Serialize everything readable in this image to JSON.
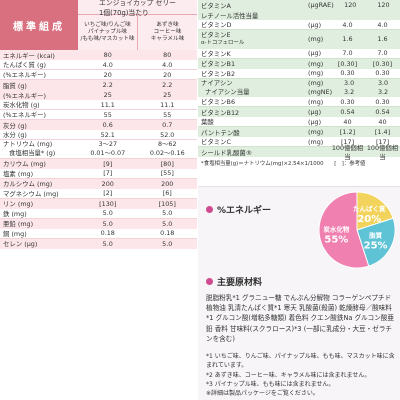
{
  "left": {
    "title": "標準組成",
    "product_header": "エンジョイカップ ゼリー\n1個(70g)当たり",
    "col1": "いちご味/りんご味\nパイナップル味\n/もも味/マスカット味",
    "col2": "あずき味\nコーヒー味\nキャラメル味",
    "rows": [
      {
        "name": "エネルギー",
        "unit": "(kcal)",
        "v1": "80",
        "v2": "80",
        "style": "pink"
      },
      {
        "name": "たんぱく質",
        "unit": "(g)",
        "v1": "4.0",
        "v2": "4.0",
        "style": "white"
      },
      {
        "name": "",
        "unit": "(%エネルギー)",
        "v1": "20",
        "v2": "20",
        "style": "white"
      },
      {
        "name": "脂質",
        "unit": "(g)",
        "v1": "2.2",
        "v2": "2.2",
        "style": "pink"
      },
      {
        "name": "",
        "unit": "(%エネルギー)",
        "v1": "25",
        "v2": "25",
        "style": "pink"
      },
      {
        "name": "炭水化物",
        "unit": "(g)",
        "v1": "11.1",
        "v2": "11.1",
        "style": "white"
      },
      {
        "name": "",
        "unit": "(%エネルギー)",
        "v1": "55",
        "v2": "55",
        "style": "white"
      },
      {
        "name": "灰分",
        "unit": "(g)",
        "v1": "0.6",
        "v2": "0.7",
        "style": "pink"
      },
      {
        "name": "水分",
        "unit": "(g)",
        "v1": "52.1",
        "v2": "52.0",
        "style": "white"
      }
    ],
    "sodium": {
      "name": "ナトリウム",
      "name2": "食塩相当量*",
      "unit": "(mg)",
      "unit2": "(g)",
      "v1": "3〜27",
      "v1b": "0.01〜0.07",
      "v2": "8〜62",
      "v2b": "0.02〜0.16"
    },
    "rows2": [
      {
        "name": "カリウム",
        "unit": "(mg)",
        "v1": "[9]",
        "v2": "[80]",
        "style": "pink"
      },
      {
        "name": "塩素",
        "unit": "(mg)",
        "v1": "[7]",
        "v2": "[55]",
        "style": "white"
      },
      {
        "name": "カルシウム",
        "unit": "(mg)",
        "v1": "200",
        "v2": "200",
        "style": "pink"
      },
      {
        "name": "マグネシウム",
        "unit": "(mg)",
        "v1": "[2]",
        "v2": "[6]",
        "style": "white"
      },
      {
        "name": "リン",
        "unit": "(mg)",
        "v1": "[130]",
        "v2": "[105]",
        "style": "pink"
      },
      {
        "name": "鉄",
        "unit": "(mg)",
        "v1": "5.0",
        "v2": "5.0",
        "style": "white"
      },
      {
        "name": "亜鉛",
        "unit": "(mg)",
        "v1": "5.0",
        "v2": "5.0",
        "style": "pink"
      },
      {
        "name": "銅",
        "unit": "(mg)",
        "v1": "0.18",
        "v2": "0.18",
        "style": "white"
      },
      {
        "name": "セレン",
        "unit": "(μg)",
        "v1": "5.0",
        "v2": "5.0",
        "style": "pink"
      }
    ]
  },
  "right": {
    "rows": [
      {
        "name": "ビタミンA",
        "unit": "(μgRAE)",
        "v1": "120",
        "v2": "120",
        "style": "green"
      },
      {
        "name": "  レチノール活性当量",
        "unit": "",
        "v1": "",
        "v2": "",
        "style": "green"
      },
      {
        "name": "ビタミンD",
        "unit": "(μg)",
        "v1": "4.0",
        "v2": "4.0",
        "style": "white"
      }
    ],
    "vitE": {
      "name": "ビタミンE",
      "name2": "α-トコフェロール",
      "unit": "(mg)",
      "v1": "1.6",
      "v2": "1.6"
    },
    "rows2": [
      {
        "name": "ビタミンK",
        "unit": "(μg)",
        "v1": "7.0",
        "v2": "7.0",
        "style": "white"
      },
      {
        "name": "ビタミンB1",
        "unit": "(mg)",
        "v1": "[0.30]",
        "v2": "[0.30]",
        "style": "green"
      },
      {
        "name": "ビタミンB2",
        "unit": "(mg)",
        "v1": "0.30",
        "v2": "0.30",
        "style": "white"
      }
    ],
    "niacin": {
      "name": "ナイアシン",
      "name2": "ナイアシン当量",
      "unit": "(mg)",
      "unit2": "(mgNE)",
      "v1": "3.0",
      "v1b": "3.2",
      "v2": "3.0",
      "v2b": "3.2"
    },
    "rows3": [
      {
        "name": "ビタミンB6",
        "unit": "(mg)",
        "v1": "0.30",
        "v2": "0.30",
        "style": "white"
      },
      {
        "name": "ビタミンB12",
        "unit": "(μg)",
        "v1": "0.54",
        "v2": "0.54",
        "style": "green"
      },
      {
        "name": "葉酸",
        "unit": "(μg)",
        "v1": "40",
        "v2": "40",
        "style": "white"
      },
      {
        "name": "パントテン酸",
        "unit": "(mg)",
        "v1": "[1.2]",
        "v2": "[1.4]",
        "style": "green"
      },
      {
        "name": "ビタミンC",
        "unit": "(mg)",
        "v1": "[17]",
        "v2": "[17]",
        "style": "white"
      },
      {
        "name": "シールド乳酸菌®",
        "unit": "",
        "v1": "100億個相当",
        "v2": "100億個相当",
        "style": "green"
      }
    ],
    "footnote": "*食塩相当量(g)＝ナトリウム(mg)×2.54×1/1000　　[　]：参考値"
  },
  "panel": {
    "energy_title": "%エネルギー",
    "pie": [
      {
        "label": "炭水化物",
        "value": 55,
        "color": "#f080b0"
      },
      {
        "label": "たんぱく質",
        "value": 20,
        "color": "#f2d35c"
      },
      {
        "label": "脂質",
        "value": 25,
        "color": "#5fc3d6"
      }
    ],
    "materials_title": "主要原材料",
    "ingredients": "脱脂粉乳*1 グラニュー糖 でんぷん分解物 コラーゲンペプチド 植物油 乳清たんぱく質*1 寒天 乳酸菌(殺菌) 乾燥酵母／酸味料*1 グルコン酸(増粘多糖類) 着色料 クエン酸鉄Na グルコン酸亜鉛 香料 甘味料(スクラロース)*3 (一部に乳成分・大豆・ゼラチンを含む)",
    "notes": [
      "*1 いちご味、りんご味、パイナップル味、もも味、マスカット味に含まれています。",
      "*2 あずき味、コーヒー味、キャラメル味には含まれません。",
      "*3 パイナップル味、もも味には含まれません。",
      "※詳細は製品パッケージをご覧ください。"
    ]
  }
}
